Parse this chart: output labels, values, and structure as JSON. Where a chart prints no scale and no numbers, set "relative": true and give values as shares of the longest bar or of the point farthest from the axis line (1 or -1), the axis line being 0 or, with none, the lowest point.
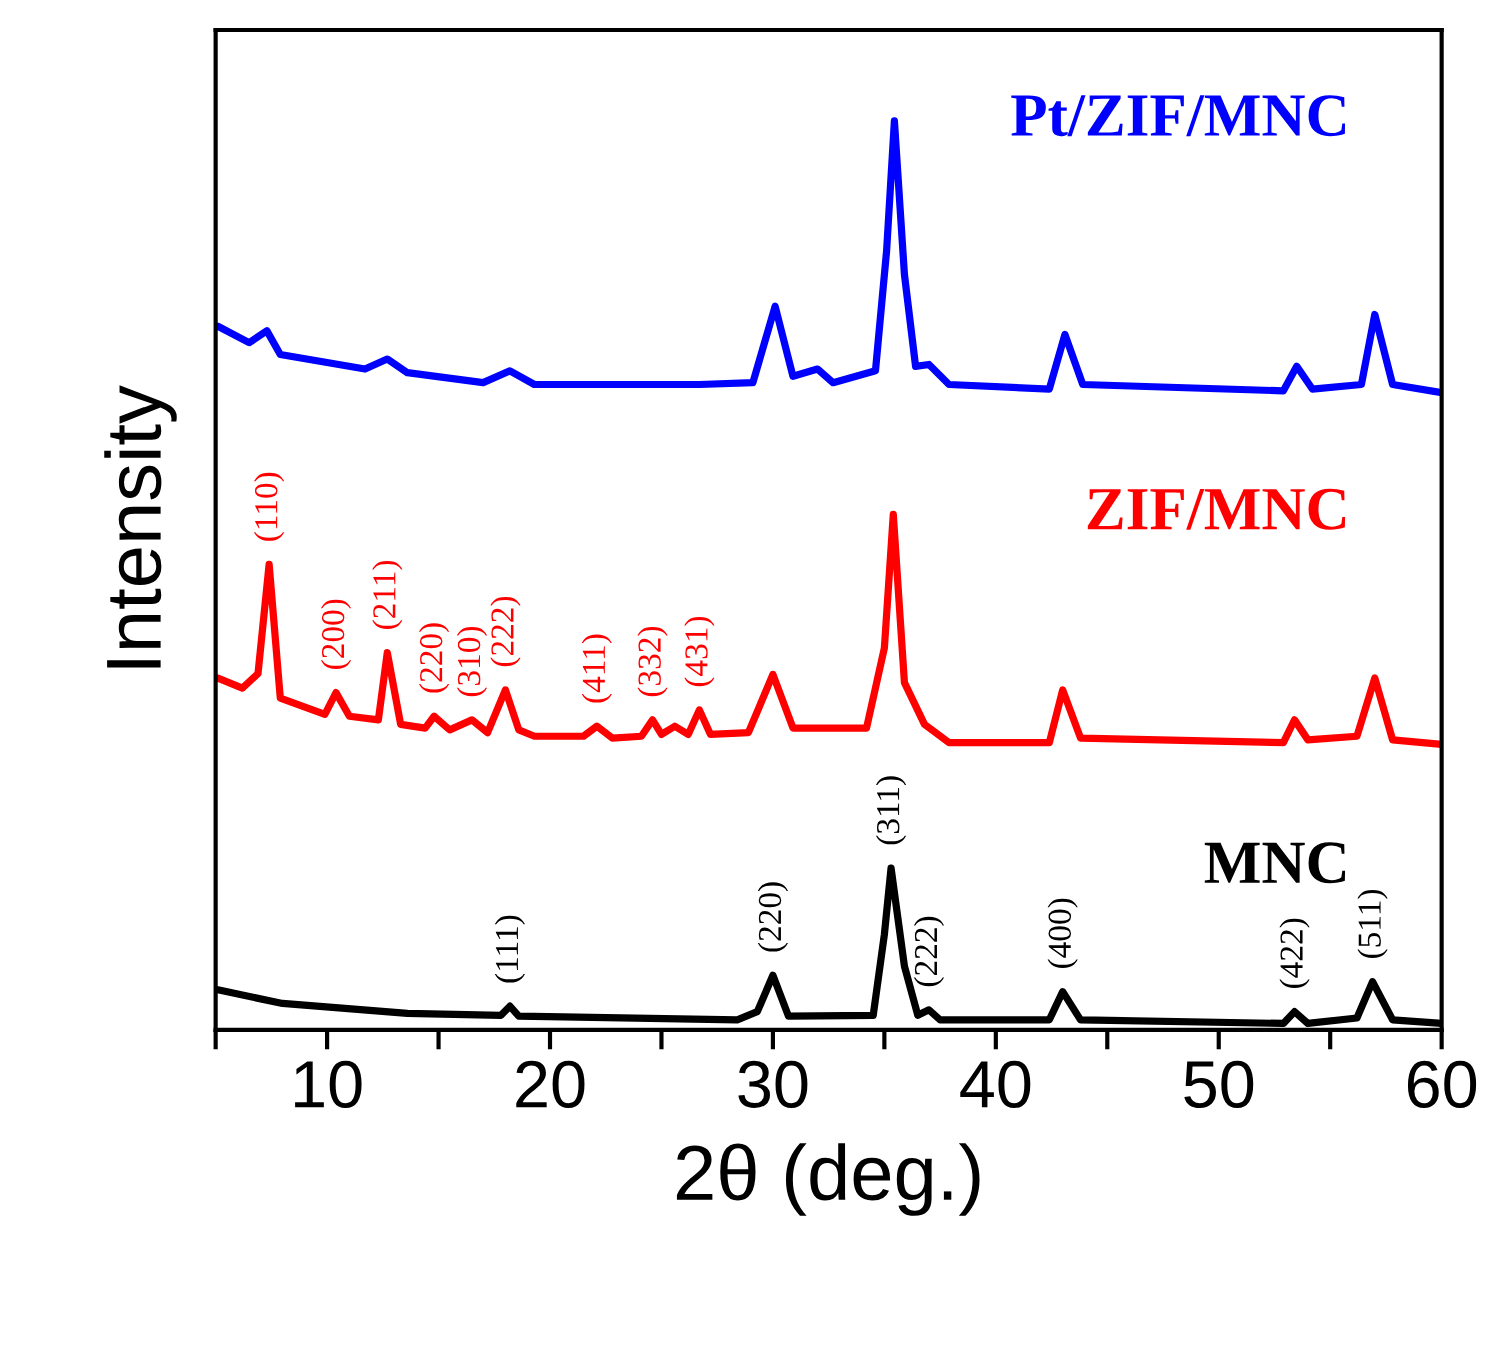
{
  "chart_data": {
    "type": "line",
    "relative": true,
    "xlabel": "2θ (deg.)",
    "ylabel": "Intensity",
    "xlim": [
      5,
      60
    ],
    "xticks": [
      {
        "value": 5,
        "label": null
      },
      10,
      {
        "value": 15,
        "label": null
      },
      20,
      {
        "value": 25,
        "label": null
      },
      30,
      {
        "value": 35,
        "label": null
      },
      40,
      {
        "value": 45,
        "label": null
      },
      50,
      {
        "value": 55,
        "label": null
      },
      60
    ],
    "tick_labels": "x",
    "grid": false,
    "legend": false,
    "marker": "none",
    "line_style": "solid",
    "series": [
      {
        "name": "Pt/ZIF/MNC",
        "color": "#0000ff",
        "x": [
          5.1,
          6.5,
          7.3,
          7.9,
          11.7,
          12.7,
          13.6,
          17.0,
          18.2,
          19.3,
          26.7,
          29.1,
          30.1,
          30.9,
          32.0,
          32.7,
          34.6,
          35.1,
          35.45,
          35.9,
          36.4,
          37.0,
          37.9,
          42.4,
          43.1,
          43.9,
          52.9,
          53.5,
          54.2,
          56.4,
          57.0,
          57.8,
          60
        ],
        "values": [
          0.774,
          0.756,
          0.769,
          0.743,
          0.727,
          0.738,
          0.723,
          0.712,
          0.725,
          0.71,
          0.71,
          0.712,
          0.796,
          0.719,
          0.727,
          0.712,
          0.725,
          0.857,
          1.0,
          0.831,
          0.73,
          0.732,
          0.71,
          0.705,
          0.765,
          0.71,
          0.703,
          0.73,
          0.705,
          0.71,
          0.787,
          0.71,
          0.701
        ]
      },
      {
        "name": "ZIF/MNC",
        "color": "#ff0000",
        "x": [
          5.1,
          6.2,
          6.9,
          7.4,
          7.9,
          9.9,
          10.4,
          11.0,
          12.3,
          12.7,
          13.3,
          14.4,
          14.8,
          15.5,
          16.5,
          17.2,
          18.0,
          18.6,
          19.3,
          21.5,
          22.1,
          22.8,
          24.1,
          24.6,
          25.0,
          25.6,
          26.2,
          26.7,
          27.2,
          28.9,
          30.0,
          30.9,
          32.3,
          34.2,
          35.0,
          35.4,
          35.9,
          36.8,
          37.9,
          42.4,
          43.0,
          43.8,
          52.9,
          53.4,
          54.0,
          56.2,
          57.0,
          57.8,
          60
        ],
        "values": [
          0.387,
          0.376,
          0.392,
          0.512,
          0.365,
          0.347,
          0.371,
          0.345,
          0.341,
          0.415,
          0.336,
          0.332,
          0.345,
          0.33,
          0.341,
          0.327,
          0.374,
          0.33,
          0.323,
          0.323,
          0.334,
          0.321,
          0.323,
          0.341,
          0.325,
          0.334,
          0.325,
          0.352,
          0.325,
          0.327,
          0.391,
          0.332,
          0.332,
          0.332,
          0.42,
          0.567,
          0.382,
          0.336,
          0.316,
          0.316,
          0.374,
          0.321,
          0.316,
          0.341,
          0.319,
          0.323,
          0.387,
          0.319,
          0.314
        ]
      },
      {
        "name": "MNC",
        "color": "#000000",
        "x": [
          5.1,
          8.0,
          13.6,
          17.8,
          18.2,
          18.6,
          28.4,
          29.3,
          30.0,
          30.7,
          34.5,
          35.0,
          35.3,
          35.9,
          36.5,
          37.0,
          37.5,
          42.4,
          43.0,
          43.8,
          52.9,
          53.4,
          54.0,
          56.2,
          56.9,
          57.8,
          60
        ],
        "values": [
          0.044,
          0.029,
          0.018,
          0.016,
          0.026,
          0.015,
          0.011,
          0.02,
          0.06,
          0.015,
          0.016,
          0.105,
          0.178,
          0.07,
          0.016,
          0.022,
          0.011,
          0.011,
          0.042,
          0.011,
          0.007,
          0.02,
          0.007,
          0.013,
          0.053,
          0.011,
          0.007
        ]
      }
    ],
    "annotations": [
      {
        "text": "(110)",
        "x": 7.4,
        "y": 0.512
      },
      {
        "text": "(200)",
        "x": 10.4,
        "y": 0.371
      },
      {
        "text": "(211)",
        "x": 12.7,
        "y": 0.415
      },
      {
        "text": "(220)",
        "x": 14.8,
        "y": 0.345
      },
      {
        "text": "(310)",
        "x": 16.5,
        "y": 0.341
      },
      {
        "text": "(222)",
        "x": 18.0,
        "y": 0.374
      },
      {
        "text": "(411)",
        "x": 22.1,
        "y": 0.334
      },
      {
        "text": "(332)",
        "x": 24.6,
        "y": 0.341
      },
      {
        "text": "(431)",
        "x": 26.7,
        "y": 0.352
      },
      {
        "text": "(111)",
        "x": 18.2,
        "y": 0.026
      },
      {
        "text": "(220)",
        "x": 30.0,
        "y": 0.06
      },
      {
        "text": "(311)",
        "x": 35.3,
        "y": 0.178
      },
      {
        "text": "(222)",
        "x": 37.0,
        "y": 0.022
      },
      {
        "text": "(400)",
        "x": 43.0,
        "y": 0.042
      },
      {
        "text": "(422)",
        "x": 53.4,
        "y": 0.02
      },
      {
        "text": "(511)",
        "x": 56.9,
        "y": 0.053
      }
    ]
  }
}
